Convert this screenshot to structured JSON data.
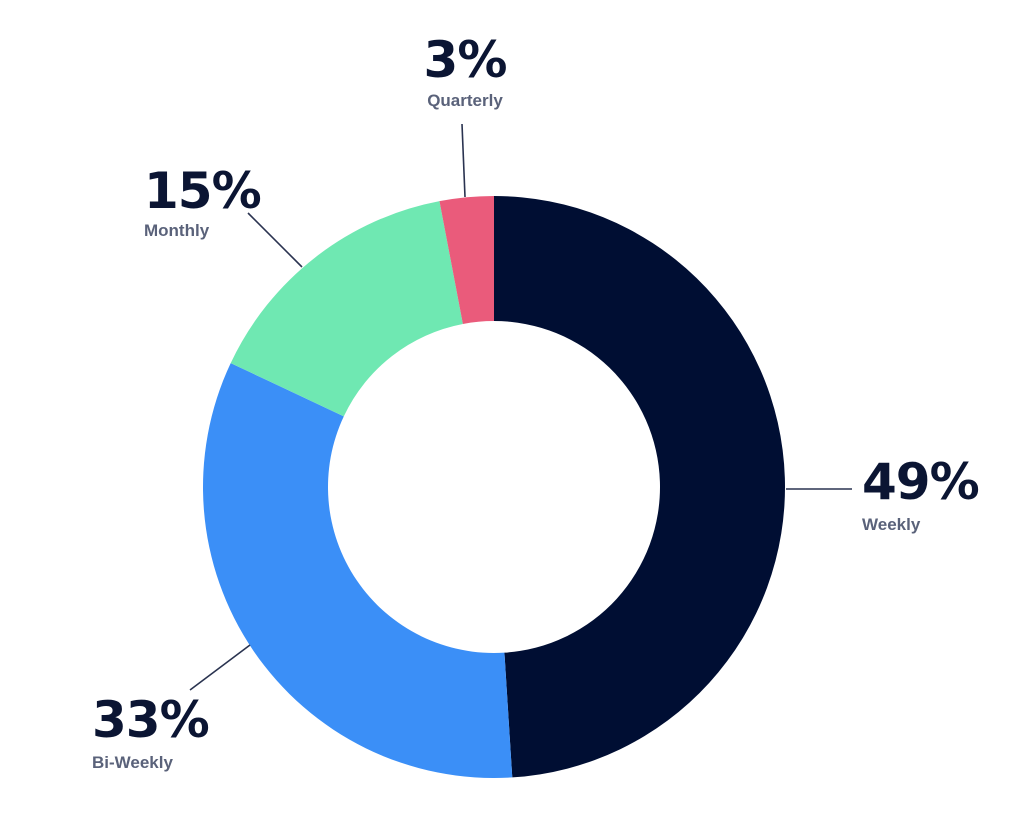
{
  "chart_data": {
    "type": "pie",
    "style": "donut",
    "slices": [
      {
        "label": "Weekly",
        "value": 49,
        "value_label": "49%",
        "color": "#000e33"
      },
      {
        "label": "Bi-Weekly",
        "value": 33,
        "value_label": "33%",
        "color": "#3b8ff7"
      },
      {
        "label": "Monthly",
        "value": 15,
        "value_label": "15%",
        "color": "#6fe8b2"
      },
      {
        "label": "Quarterly",
        "value": 3,
        "value_label": "3%",
        "color": "#ea5b7b"
      }
    ],
    "start_angle": "12 o'clock",
    "direction": "clockwise",
    "legend": "none"
  },
  "colors": {
    "value_text": "#0b1533",
    "label_text": "#5a627a",
    "leader_line": "#2a3350"
  }
}
